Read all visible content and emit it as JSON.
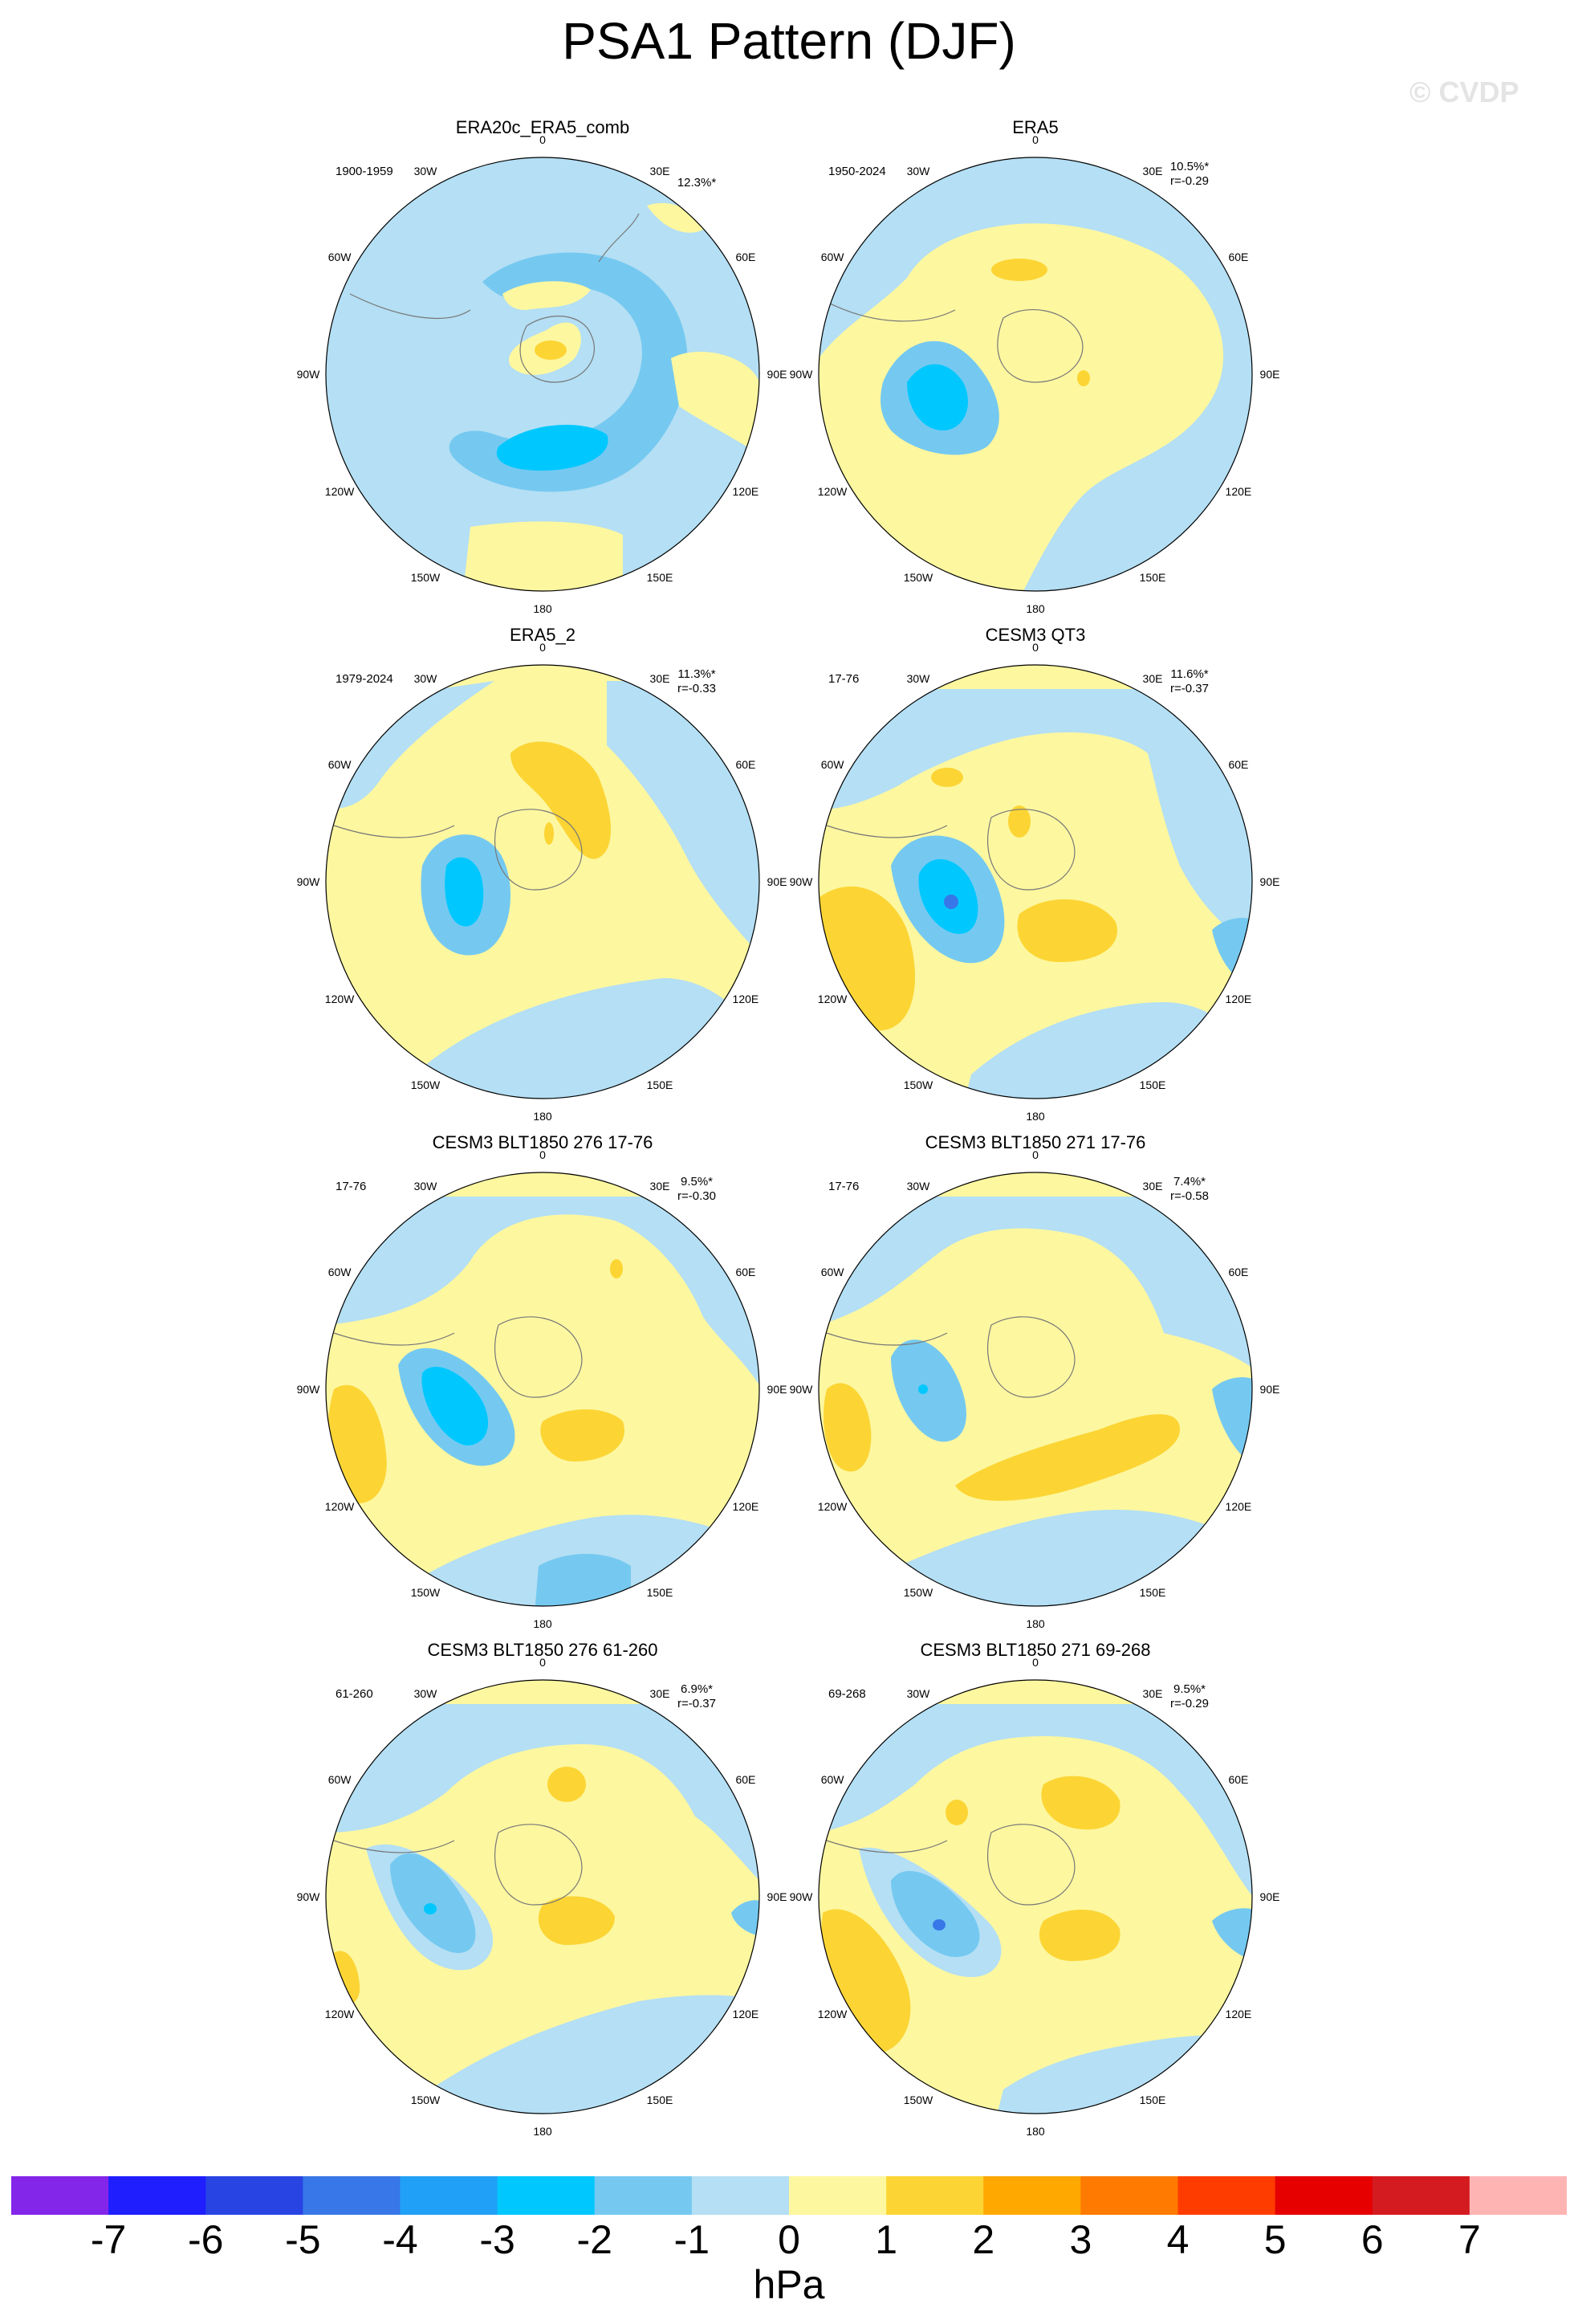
{
  "title": "PSA1 Pattern (DJF)",
  "watermark": "© CVDP",
  "colorbar": {
    "levels": [
      "-7",
      "-6",
      "-5",
      "-4",
      "-3",
      "-2",
      "-1",
      "0",
      "1",
      "2",
      "3",
      "4",
      "5",
      "6",
      "7"
    ],
    "colors": [
      "#8426e9",
      "#1e1eff",
      "#2844e3",
      "#3777e8",
      "#20a0f6",
      "#00c8ff",
      "#75c9f0",
      "#b4dff4",
      "#fdf7a0",
      "#fcd534",
      "#ffa800",
      "#ff7a00",
      "#ff3c00",
      "#e60000",
      "#d31b20",
      "#ffb4b4"
    ],
    "units": "hPa"
  },
  "map_labels": {
    "lon": {
      "0": "0",
      "30E": "30E",
      "60E": "60E",
      "90E": "90E",
      "120E": "120E",
      "150E": "150E",
      "180": "180",
      "150W": "150W",
      "120W": "120W",
      "90W": "90W",
      "60W": "60W",
      "30W": "30W"
    }
  },
  "panels": [
    {
      "title": "ERA20c_ERA5_comb",
      "period": "1900-1959",
      "pct": "12.3%*",
      "r": ""
    },
    {
      "title": "ERA5",
      "period": "1950-2024",
      "pct": "10.5%*",
      "r": "r=-0.29"
    },
    {
      "title": "ERA5_2",
      "period": "1979-2024",
      "pct": "11.3%*",
      "r": "r=-0.33"
    },
    {
      "title": "CESM3 QT3",
      "period": "17-76",
      "pct": "11.6%*",
      "r": "r=-0.37"
    },
    {
      "title": "CESM3 BLT1850 276 17-76",
      "period": "17-76",
      "pct": "9.5%*",
      "r": "r=-0.30"
    },
    {
      "title": "CESM3 BLT1850 271 17-76",
      "period": "17-76",
      "pct": "7.4%*",
      "r": "r=-0.58"
    },
    {
      "title": "CESM3 BLT1850 276 61-260",
      "period": "61-260",
      "pct": "6.9%*",
      "r": "r=-0.37"
    },
    {
      "title": "CESM3 BLT1850 271 69-268",
      "period": "69-268",
      "pct": "9.5%*",
      "r": "r=-0.29"
    }
  ]
}
